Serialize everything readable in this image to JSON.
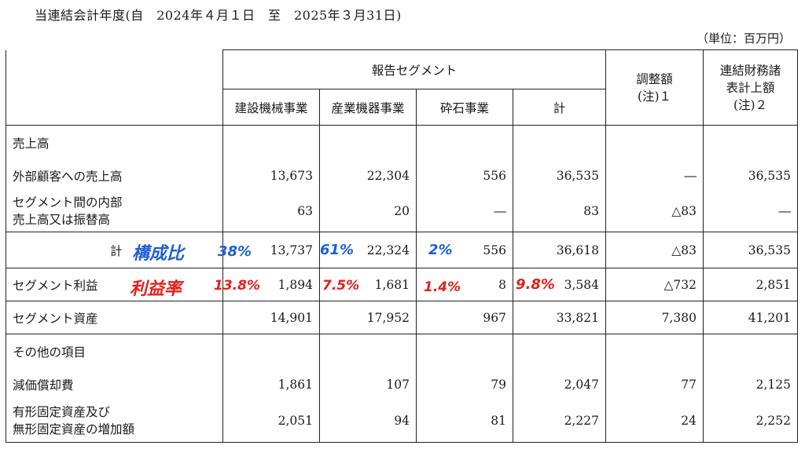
{
  "period": "当連結会計年度(自　2024年４月１日　至　2025年３月31日)",
  "unit": "（単位：百万円）",
  "header": {
    "group": "報告セグメント",
    "segments": [
      "建設機械事業",
      "産業機器事業",
      "砕石事業",
      "計"
    ],
    "adjustment": [
      "調整額",
      "(注)１"
    ],
    "consolidated": [
      "連結財務諸",
      "表計上額",
      "(注)２"
    ]
  },
  "rows": {
    "sales_heading": "売上高",
    "external": {
      "label": "外部顧客への売上高",
      "values": [
        "13,673",
        "22,304",
        "556",
        "36,535",
        "―",
        "36,535"
      ]
    },
    "intersegment": {
      "label": [
        "セグメント間の内部",
        "売上高又は振替高"
      ],
      "values": [
        "63",
        "20",
        "―",
        "83",
        "△83",
        "―"
      ]
    },
    "total": {
      "label": "計",
      "values": [
        "13,737",
        "22,324",
        "556",
        "36,618",
        "△83",
        "36,535"
      ]
    },
    "profit": {
      "label": "セグメント利益",
      "values": [
        "1,894",
        "1,681",
        "8",
        "3,584",
        "△732",
        "2,851"
      ]
    },
    "assets": {
      "label": "セグメント資産",
      "values": [
        "14,901",
        "17,952",
        "967",
        "33,821",
        "7,380",
        "41,201"
      ]
    },
    "other_heading": "その他の項目",
    "depreciation": {
      "label": "減価償却費",
      "values": [
        "1,861",
        "107",
        "79",
        "2,047",
        "77",
        "2,125"
      ]
    },
    "capex": {
      "label": [
        "有形固定資産及び",
        "無形固定資産の増加額"
      ],
      "values": [
        "2,051",
        "94",
        "81",
        "2,227",
        "24",
        "2,252"
      ]
    }
  },
  "annotations": {
    "composition_label": "構成比",
    "composition": [
      "38%",
      "61%",
      "2%"
    ],
    "margin_label": "利益率",
    "margin": [
      "13.8%",
      "7.5%",
      "1.4%",
      "9.8%"
    ],
    "composition_color": "#1f5fd6",
    "margin_color": "#e3201b"
  }
}
